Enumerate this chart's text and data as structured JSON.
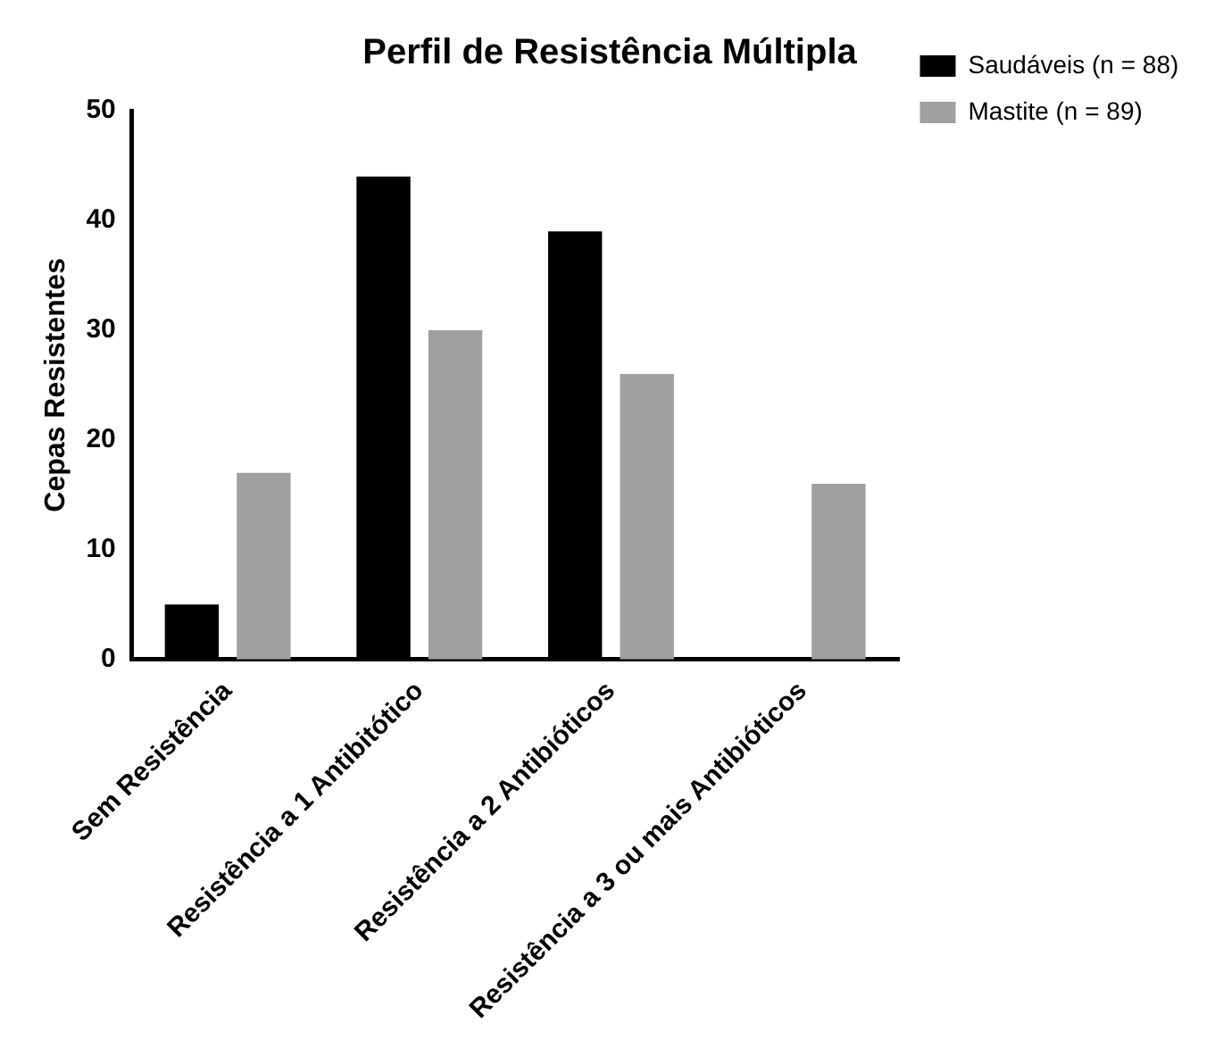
{
  "chart_data": {
    "type": "bar",
    "title": "Perfil de Resistência Múltipla",
    "ylabel": "Cepas Resistentes",
    "categories": [
      "Sem Resistência",
      "Resistência a 1 Antibitótico",
      "Resistência a 2 Antibióticos",
      "Resistência a 3 ou mais Antibióticos"
    ],
    "series": [
      {
        "name": "Saudáveis (n = 88)",
        "color": "#000000",
        "values": [
          5,
          44,
          39,
          0
        ]
      },
      {
        "name": "Mastite (n = 89)",
        "color": "#a0a0a0",
        "values": [
          17,
          30,
          26,
          16
        ]
      }
    ],
    "ylim": [
      0,
      50
    ],
    "yticks": [
      0,
      10,
      20,
      30,
      40,
      50
    ],
    "legend": "top right"
  }
}
